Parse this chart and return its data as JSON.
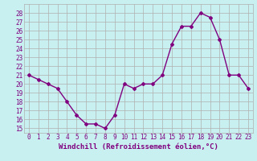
{
  "x": [
    0,
    1,
    2,
    3,
    4,
    5,
    6,
    7,
    8,
    9,
    10,
    11,
    12,
    13,
    14,
    15,
    16,
    17,
    18,
    19,
    20,
    21,
    22,
    23
  ],
  "y": [
    21,
    20.5,
    20,
    19.5,
    18,
    16.5,
    15.5,
    15.5,
    15,
    16.5,
    20,
    19.5,
    20,
    20,
    21,
    24.5,
    26.5,
    26.5,
    28,
    27.5,
    25,
    21,
    21,
    19.5
  ],
  "line_color": "#800080",
  "marker": "D",
  "marker_size": 2,
  "bg_color": "#c8f0f0",
  "grid_color": "#b0b0b0",
  "xlim": [
    -0.5,
    23.5
  ],
  "ylim": [
    14.5,
    29
  ],
  "yticks": [
    15,
    16,
    17,
    18,
    19,
    20,
    21,
    22,
    23,
    24,
    25,
    26,
    27,
    28
  ],
  "xtick_labels": [
    "0",
    "1",
    "2",
    "3",
    "4",
    "5",
    "6",
    "7",
    "8",
    "9",
    "10",
    "11",
    "12",
    "13",
    "14",
    "15",
    "16",
    "17",
    "18",
    "19",
    "20",
    "21",
    "22",
    "23"
  ],
  "xlabel": "Windchill (Refroidissement éolien,°C)",
  "line_width": 1.0,
  "tick_fontsize": 5.5,
  "label_fontsize": 6.5
}
